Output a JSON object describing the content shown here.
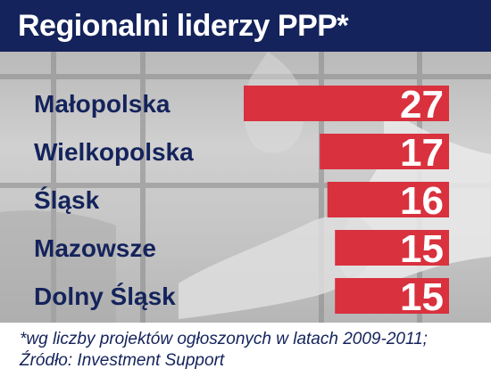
{
  "header": {
    "title": "Regionalni liderzy PPP*"
  },
  "chart_data": {
    "type": "bar",
    "orientation": "horizontal",
    "title": "Regionalni liderzy PPP*",
    "categories": [
      "Małopolska",
      "Wielkopolska",
      "Śląsk",
      "Mazowsze",
      "Dolny Śląsk"
    ],
    "values": [
      27,
      17,
      16,
      15,
      15
    ],
    "xlim": [
      0,
      27
    ],
    "grid": false,
    "legend": "none",
    "bar_color": "#d9313e",
    "label_color": "#14235b"
  },
  "footnote": {
    "line1": "*wg liczby projektów ogłoszonych w latach 2009-2011;",
    "line2": "Źródło: Investment Support"
  },
  "colors": {
    "header_bg": "#14235b",
    "bar": "#d9313e",
    "text_dark": "#14235b"
  }
}
